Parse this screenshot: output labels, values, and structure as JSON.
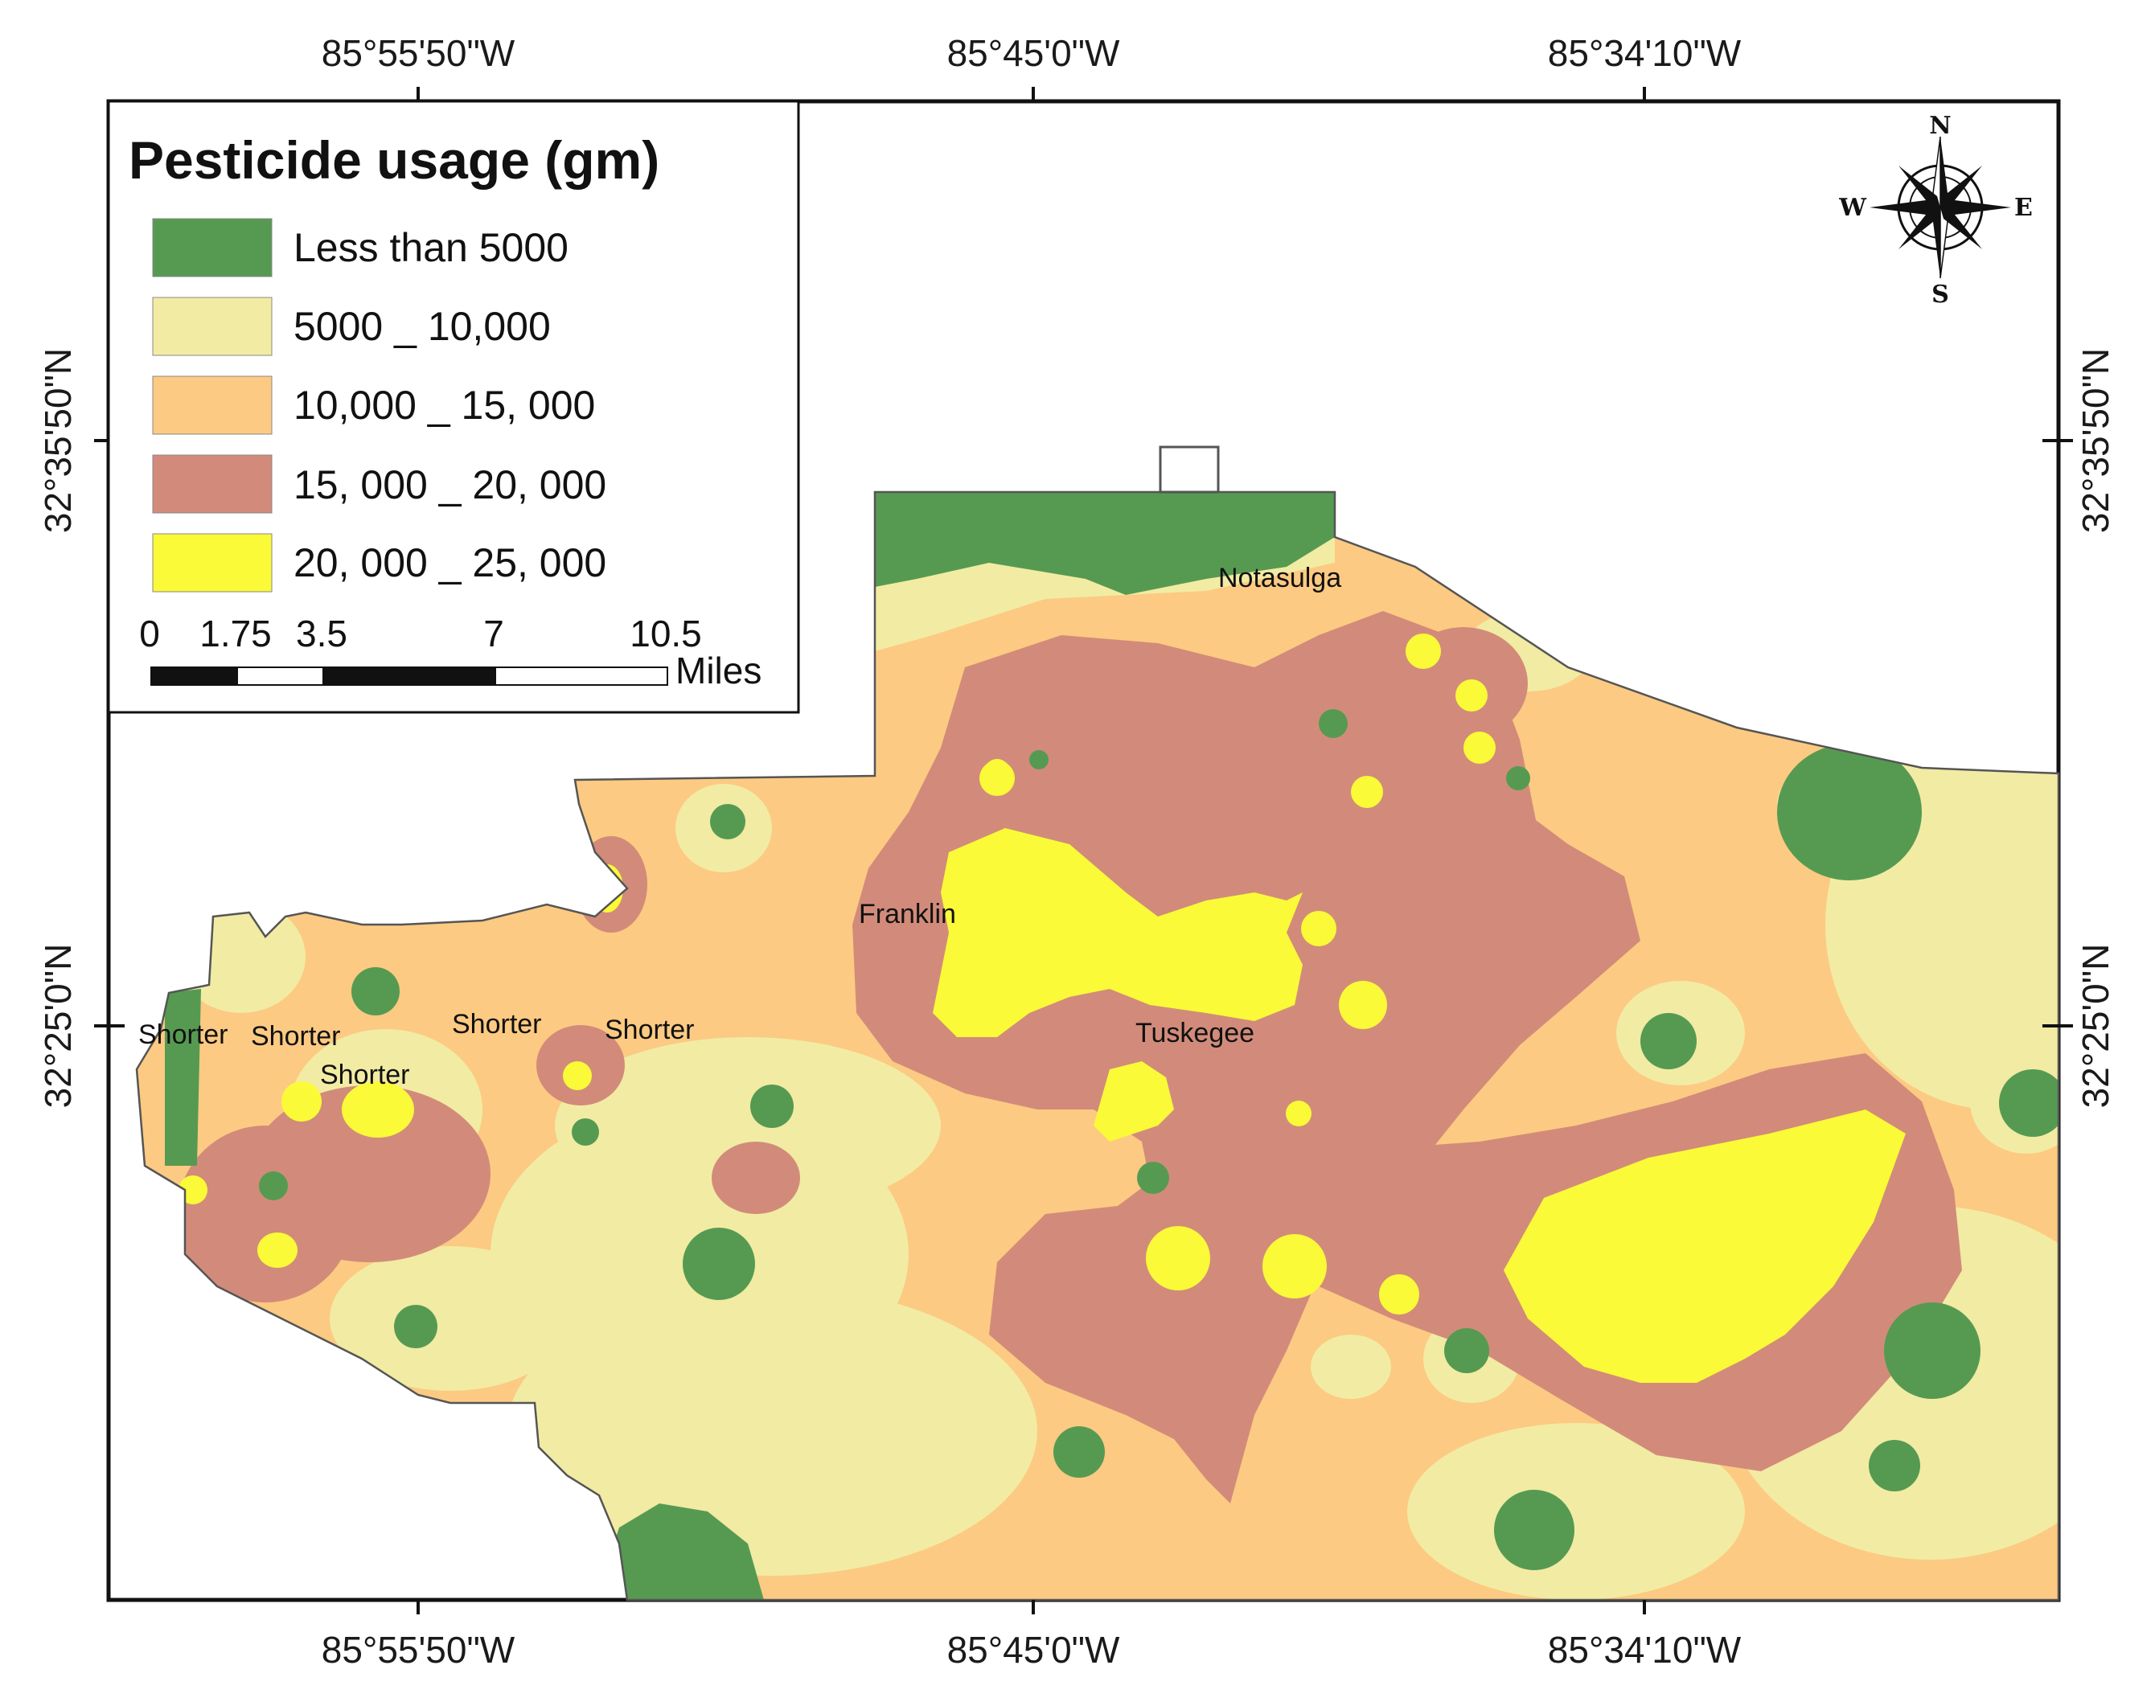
{
  "map": {
    "colors": {
      "class_lt_5000": "#569a52",
      "class_5000_10000": "#f2eba3",
      "class_10000_15000": "#fcca82",
      "class_15000_20000": "#d28b7a",
      "class_20000_25000": "#fafa38",
      "frame": "#111111",
      "boundary": "#555555"
    },
    "longitude_labels": [
      "85°55'50\"W",
      "85°45'0\"W",
      "85°34'10\"W"
    ],
    "latitude_labels": [
      "32°35'50\"N",
      "32°25'0\"N"
    ],
    "legend": {
      "title": "Pesticide usage (gm)",
      "classes": [
        {
          "label": "Less than 5000",
          "color": "#569a52"
        },
        {
          "label": "5000 _ 10,000",
          "color": "#f2eba3"
        },
        {
          "label": "10,000 _ 15, 000",
          "color": "#fcca82"
        },
        {
          "label": "15, 000 _ 20, 000",
          "color": "#d28b7a"
        },
        {
          "label": "20, 000 _ 25, 000",
          "color": "#fafa38"
        }
      ]
    },
    "scale_bar": {
      "ticks": [
        "0",
        "1.75",
        "3.5",
        "7",
        "10.5"
      ],
      "unit": "Miles"
    },
    "compass": {
      "n": "N",
      "s": "S",
      "e": "E",
      "w": "W"
    },
    "places": [
      "Notasulga",
      "Franklin",
      "Tuskegee",
      "Shorter",
      "Shorter",
      "Shorter",
      "Shorter",
      "Shorter"
    ]
  }
}
